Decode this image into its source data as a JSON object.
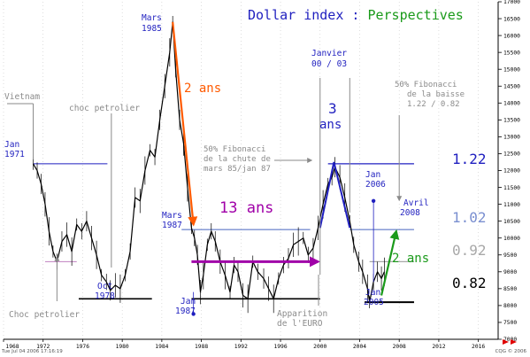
{
  "chart_data": {
    "type": "line",
    "title_black": "Dollar index : ",
    "title_green": "Perspectives",
    "x_ticks": [
      "1968",
      "1972",
      "1976",
      "1980",
      "1984",
      "1988",
      "1992",
      "1996",
      "2000",
      "2004",
      "2008",
      "2012",
      "2016"
    ],
    "y_ticks": [
      7000,
      7500,
      8000,
      8500,
      9000,
      9500,
      10000,
      10500,
      11000,
      11500,
      12000,
      12500,
      13000,
      13500,
      14000,
      14500,
      15000,
      15500,
      16000,
      16500,
      17000
    ],
    "xlim": [
      1968.0,
      2018.0
    ],
    "ylim": [
      7000,
      17000
    ],
    "series": [
      {
        "values": [
          [
            1971.0,
            12200
          ],
          [
            1971.4,
            12000
          ],
          [
            1971.8,
            11600
          ],
          [
            1972.2,
            11000
          ],
          [
            1972.6,
            10200
          ],
          [
            1973.0,
            9600
          ],
          [
            1973.4,
            9300
          ],
          [
            1973.9,
            9900
          ],
          [
            1974.4,
            10100
          ],
          [
            1974.9,
            9600
          ],
          [
            1975.4,
            10400
          ],
          [
            1975.9,
            10200
          ],
          [
            1976.4,
            10500
          ],
          [
            1976.9,
            10000
          ],
          [
            1977.4,
            9500
          ],
          [
            1977.9,
            8900
          ],
          [
            1978.4,
            8700
          ],
          [
            1978.8,
            8450
          ],
          [
            1979.3,
            8600
          ],
          [
            1979.8,
            8500
          ],
          [
            1980.3,
            8900
          ],
          [
            1980.8,
            9600
          ],
          [
            1981.3,
            11200
          ],
          [
            1981.8,
            11100
          ],
          [
            1982.3,
            12000
          ],
          [
            1982.8,
            12600
          ],
          [
            1983.3,
            12400
          ],
          [
            1983.8,
            13500
          ],
          [
            1984.3,
            14500
          ],
          [
            1984.8,
            15500
          ],
          [
            1985.1,
            16400
          ],
          [
            1985.4,
            15000
          ],
          [
            1985.8,
            13500
          ],
          [
            1986.2,
            12800
          ],
          [
            1986.6,
            11500
          ],
          [
            1987.0,
            10300
          ],
          [
            1987.3,
            10000
          ],
          [
            1987.6,
            9500
          ],
          [
            1987.9,
            8400
          ],
          [
            1988.2,
            8900
          ],
          [
            1988.6,
            9800
          ],
          [
            1989.0,
            10200
          ],
          [
            1989.4,
            9900
          ],
          [
            1989.9,
            9300
          ],
          [
            1990.4,
            8900
          ],
          [
            1990.9,
            8400
          ],
          [
            1991.3,
            9200
          ],
          [
            1991.7,
            9000
          ],
          [
            1992.2,
            8300
          ],
          [
            1992.7,
            8200
          ],
          [
            1993.2,
            9300
          ],
          [
            1993.7,
            9000
          ],
          [
            1994.3,
            8800
          ],
          [
            1994.8,
            8500
          ],
          [
            1995.3,
            8200
          ],
          [
            1995.8,
            8800
          ],
          [
            1996.3,
            9200
          ],
          [
            1996.8,
            9400
          ],
          [
            1997.3,
            9800
          ],
          [
            1997.8,
            9900
          ],
          [
            1998.3,
            10000
          ],
          [
            1998.8,
            9500
          ],
          [
            1999.3,
            9700
          ],
          [
            1999.8,
            10300
          ],
          [
            2000.3,
            11000
          ],
          [
            2000.8,
            11600
          ],
          [
            2001.2,
            11800
          ],
          [
            2001.5,
            12100
          ],
          [
            2002.0,
            11800
          ],
          [
            2002.5,
            11200
          ],
          [
            2003.0,
            10500
          ],
          [
            2003.4,
            9800
          ],
          [
            2003.9,
            9300
          ],
          [
            2004.3,
            9000
          ],
          [
            2004.8,
            8500
          ],
          [
            2005.0,
            8100
          ],
          [
            2005.4,
            8700
          ],
          [
            2005.8,
            9000
          ],
          [
            2006.2,
            8800
          ],
          [
            2006.5,
            9000
          ]
        ]
      }
    ],
    "levels": {
      "l122_label": "1.22",
      "l102_label": "1.02",
      "l092_label": "0.92",
      "l082_label": "0.82"
    },
    "annotations": {
      "vietnam": "Vietnam",
      "choc_pet_top": "choc petrolier",
      "choc_pet_bottom": "Choc petrolier",
      "mars1985_1": "Mars",
      "mars1985_2": "1985",
      "deux_ans_1": "2 ans",
      "jan1971_1": "Jan",
      "jan1971_2": "1971",
      "oct1978_1": "Oct",
      "oct1978_2": "1978",
      "mars1987_1": "Mars",
      "mars1987_2": "1987",
      "jan1987_1": "Jan",
      "jan1987_2": "1987",
      "treize_ans": "13 ans",
      "fibo1_1": "50% Fibonacci",
      "fibo1_2": "de la chute de",
      "fibo1_3": "mars 85/jan 87",
      "janvier_1": "Janvier",
      "janvier_2": "00 / 03",
      "trois_ans_1": "3",
      "trois_ans_2": "ans",
      "fibo2_1": "50% Fibonacci",
      "fibo2_2": "de la baisse",
      "fibo2_3": "1.22 / 0.82",
      "jan2006_1": "Jan",
      "jan2006_2": "2006",
      "avril_1": "Avril",
      "avril_2": "2008",
      "deux_ans_2": "2 ans",
      "jan2005_1": "Jan",
      "jan2005_2": "2005",
      "euro_1": "Apparition",
      "euro_2": "de l'EURO"
    },
    "colors": {
      "price": "#000000",
      "blue": "#1f1fbf",
      "orange": "#ff5a00",
      "purple": "#a000a8",
      "green": "#1a9a1a",
      "gray": "#8a8a8a",
      "level122": "#2020c0",
      "level102": "#7a8fd0",
      "level092": "#a8a8a8",
      "level082": "#000000",
      "purple_line": "#c080c0"
    }
  },
  "footer": {
    "left": "Tue Jul 04 2006 17:16:19",
    "right": "CQG © 2006"
  }
}
